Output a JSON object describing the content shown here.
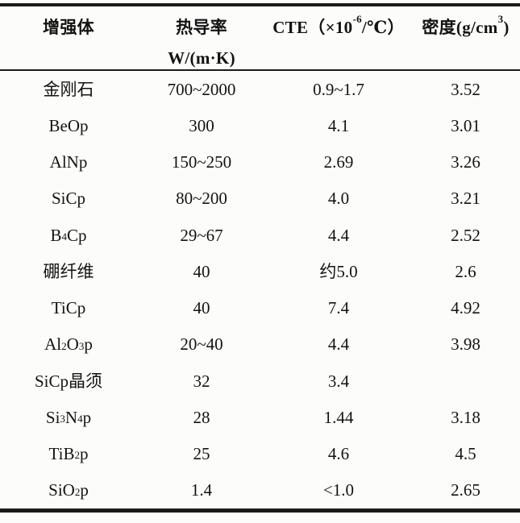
{
  "table": {
    "headers": {
      "col1": "增强体",
      "col2_line1": "热导率",
      "col2_line2": "W/(m·K)",
      "col3": "CTE（×10^{-6}/℃）",
      "col4": "密度(g/cm^{3})"
    },
    "rows": [
      {
        "name": "金刚石",
        "conductivity": "700~2000",
        "cte": "0.9~1.7",
        "density": "3.52"
      },
      {
        "name": "BeOp",
        "conductivity": "300",
        "cte": "4.1",
        "density": "3.01"
      },
      {
        "name": "AlNp",
        "conductivity": "150~250",
        "cte": "2.69",
        "density": "3.26"
      },
      {
        "name": "SiCp",
        "conductivity": "80~200",
        "cte": "4.0",
        "density": "3.21"
      },
      {
        "name": "B_{4}Cp",
        "conductivity": "29~67",
        "cte": "4.4",
        "density": "2.52"
      },
      {
        "name": "硼纤维",
        "conductivity": "40",
        "cte": "约5.0",
        "density": "2.6"
      },
      {
        "name": "TiCp",
        "conductivity": "40",
        "cte": "7.4",
        "density": "4.92"
      },
      {
        "name": "Al_{2}O_{3}p",
        "conductivity": "20~40",
        "cte": "4.4",
        "density": "3.98"
      },
      {
        "name": "SiCp晶须",
        "conductivity": "32",
        "cte": "3.4",
        "density": ""
      },
      {
        "name": "Si_{3}N_{4}p",
        "conductivity": "28",
        "cte": "1.44",
        "density": "3.18"
      },
      {
        "name": "TiB_{2}p",
        "conductivity": "25",
        "cte": "4.6",
        "density": "4.5"
      },
      {
        "name": "SiO_{2}p",
        "conductivity": "1.4",
        "cte": "<1.0",
        "density": "2.65"
      }
    ]
  },
  "colors": {
    "text": "#131313",
    "rule": "#1b1b1b",
    "paper": "#fcfcfa"
  }
}
